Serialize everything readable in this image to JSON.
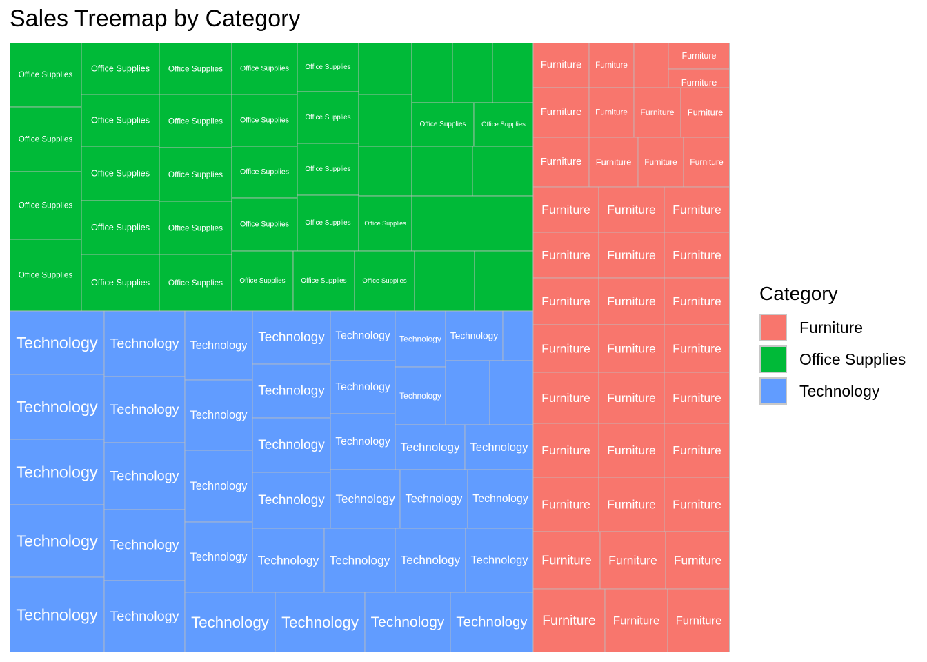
{
  "chart_data": {
    "type": "treemap",
    "title": "Sales Treemap by Category",
    "legend": {
      "title": "Category",
      "position": "right",
      "entries": [
        {
          "label": "Furniture",
          "color": "#f8766d"
        },
        {
          "label": "Office Supplies",
          "color": "#00ba38"
        },
        {
          "label": "Technology",
          "color": "#619cff"
        }
      ]
    },
    "categories": [
      {
        "name": "Office Supplies",
        "color": "#00ba38",
        "columns": [
          {
            "w": 104,
            "tiles": [
              {
                "h": 93,
                "label": "Office Supplies"
              },
              {
                "h": 94,
                "label": "Office Supplies"
              },
              {
                "h": 98,
                "label": "Office Supplies"
              },
              {
                "h": 104,
                "label": "Office Supplies"
              }
            ]
          },
          {
            "w": 113,
            "tiles": [
              {
                "h": 75,
                "label": "Office Supplies"
              },
              {
                "h": 75,
                "label": "Office Supplies"
              },
              {
                "h": 79,
                "label": "Office Supplies"
              },
              {
                "h": 78,
                "label": "Office Supplies"
              },
              {
                "h": 82,
                "label": "Office Supplies"
              }
            ]
          },
          {
            "w": 105,
            "tiles": [
              {
                "h": 75,
                "label": "Office Supplies"
              },
              {
                "h": 77,
                "label": "Office Supplies"
              },
              {
                "h": 78,
                "label": "Office Supplies"
              },
              {
                "h": 77,
                "label": "Office Supplies"
              },
              {
                "h": 82,
                "label": "Office Supplies"
              }
            ]
          },
          {
            "w": 96,
            "tiles": [
              {
                "h": 75,
                "label": "Office Supplies"
              },
              {
                "h": 75,
                "label": "Office Supplies"
              },
              {
                "h": 75,
                "label": "Office Supplies"
              },
              {
                "h": 77,
                "label": "Office Supplies"
              }
            ]
          },
          {
            "w": 89,
            "tiles": [
              {
                "h": 71,
                "label": "Office Supplies"
              },
              {
                "h": 75,
                "label": "Office Supplies"
              },
              {
                "h": 75,
                "label": "Office Supplies"
              },
              {
                "h": 81,
                "label": "Office Supplies"
              }
            ]
          },
          {
            "w": 77,
            "tiles": [
              {
                "h": 75,
                "label": ""
              },
              {
                "h": 75,
                "label": ""
              },
              {
                "h": 72,
                "label": ""
              },
              {
                "h": 80,
                "label": "Office Supplies"
              }
            ]
          },
          {
            "w": 59,
            "tiles": [
              {
                "h": 87,
                "label": ""
              }
            ]
          },
          {
            "w": 58,
            "tiles": [
              {
                "h": 87,
                "label": ""
              }
            ]
          },
          {
            "w": 58,
            "tiles": [
              {
                "h": 87,
                "label": ""
              }
            ]
          },
          {
            "w": 90,
            "tiles": [
              {
                "h": 63,
                "label": "Office Supplies"
              }
            ]
          },
          {
            "w": 86,
            "tiles": [
              {
                "h": 63,
                "label": "Office Supplies"
              }
            ]
          },
          {
            "w": 85,
            "tiles": [
              {
                "h": 71,
                "label": ""
              }
            ]
          },
          {
            "w": 85,
            "tiles": [
              {
                "h": 72,
                "label": ""
              }
            ]
          },
          {
            "w": 83,
            "tiles": [
              {
                "h": 80,
                "label": ""
              }
            ]
          },
          {
            "w": 89,
            "tiles": [
              {
                "h": 88,
                "label": "Office Supplies"
              }
            ]
          },
          {
            "w": 89,
            "tiles": [
              {
                "h": 88,
                "label": "Office Supplies"
              }
            ]
          },
          {
            "w": 87,
            "tiles": [
              {
                "h": 88,
                "label": "Office Supplies"
              }
            ]
          },
          {
            "w": 87,
            "tiles": [
              {
                "h": 88,
                "label": ""
              }
            ]
          },
          {
            "w": 85,
            "tiles": [
              {
                "h": 88,
                "label": ""
              }
            ]
          }
        ]
      },
      {
        "name": "Technology",
        "color": "#619cff",
        "columns": [
          {
            "w": 137,
            "tiles": [
              {
                "h": 92,
                "label": "Technology"
              },
              {
                "h": 94,
                "label": "Technology"
              },
              {
                "h": 95,
                "label": "Technology"
              },
              {
                "h": 105,
                "label": "Technology"
              },
              {
                "h": 108,
                "label": "Technology"
              }
            ]
          },
          {
            "w": 117,
            "tiles": [
              {
                "h": 95,
                "label": "Technology"
              },
              {
                "h": 96,
                "label": "Technology"
              },
              {
                "h": 97,
                "label": "Technology"
              },
              {
                "h": 103,
                "label": "Technology"
              },
              {
                "h": 103,
                "label": "Technology"
              }
            ]
          },
          {
            "w": 98,
            "tiles": [
              {
                "h": 100,
                "label": "Technology"
              },
              {
                "h": 102,
                "label": "Technology"
              },
              {
                "h": 104,
                "label": "Technology"
              },
              {
                "h": 102,
                "label": "Technology"
              }
            ]
          },
          {
            "w": 113,
            "tiles": [
              {
                "h": 77,
                "label": "Technology"
              },
              {
                "h": 78,
                "label": "Technology"
              },
              {
                "h": 79,
                "label": "Technology"
              },
              {
                "h": 80,
                "label": "Technology"
              }
            ]
          },
          {
            "w": 94,
            "tiles": [
              {
                "h": 72,
                "label": "Technology"
              },
              {
                "h": 77,
                "label": "Technology"
              },
              {
                "h": 81,
                "label": "Technology"
              }
            ]
          },
          {
            "w": 73,
            "tiles": [
              {
                "h": 81,
                "label": "Technology"
              },
              {
                "h": 83,
                "label": "Technology"
              }
            ]
          },
          {
            "w": 82,
            "tiles": [
              {
                "h": 72,
                "label": "Technology"
              }
            ]
          },
          {
            "w": 44,
            "tiles": [
              {
                "h": 72,
                "label": ""
              }
            ]
          },
          {
            "w": 64,
            "tiles": [
              {
                "h": 93,
                "label": ""
              }
            ]
          },
          {
            "w": 63,
            "tiles": [
              {
                "h": 93,
                "label": ""
              }
            ]
          },
          {
            "w": 101,
            "tiles": [
              {
                "h": 65,
                "label": "Technology"
              }
            ]
          },
          {
            "w": 99,
            "tiles": [
              {
                "h": 65,
                "label": "Technology"
              }
            ]
          },
          {
            "w": 101,
            "tiles": [
              {
                "h": 85,
                "label": "Technology"
              }
            ]
          },
          {
            "w": 98,
            "tiles": [
              {
                "h": 85,
                "label": "Technology"
              }
            ]
          },
          {
            "w": 95,
            "tiles": [
              {
                "h": 85,
                "label": "Technology"
              }
            ]
          },
          {
            "w": 104,
            "tiles": [
              {
                "h": 93,
                "label": "Technology"
              }
            ]
          },
          {
            "w": 103,
            "tiles": [
              {
                "h": 93,
                "label": "Technology"
              }
            ]
          },
          {
            "w": 102,
            "tiles": [
              {
                "h": 93,
                "label": "Technology"
              }
            ]
          },
          {
            "w": 99,
            "tiles": [
              {
                "h": 93,
                "label": "Technology"
              }
            ]
          },
          {
            "w": 131,
            "tiles": [
              {
                "h": 86,
                "label": "Technology"
              }
            ]
          },
          {
            "w": 130,
            "tiles": [
              {
                "h": 86,
                "label": "Technology"
              }
            ]
          },
          {
            "w": 124,
            "tiles": [
              {
                "h": 86,
                "label": "Technology"
              }
            ]
          },
          {
            "w": 121,
            "tiles": [
              {
                "h": 86,
                "label": "Technology"
              }
            ]
          }
        ]
      },
      {
        "name": "Furniture",
        "color": "#f8766d",
        "tiles": [
          {
            "label": "Furniture"
          },
          {
            "label": "Furniture"
          },
          {
            "label": ""
          },
          {
            "label": "Furniture"
          },
          {
            "label": "Furniture"
          },
          {
            "label": "Furniture"
          },
          {
            "label": "Furniture"
          },
          {
            "label": "Furniture"
          },
          {
            "label": "Furniture"
          },
          {
            "label": "Furniture"
          },
          {
            "label": "Furniture"
          },
          {
            "label": "Furniture"
          },
          {
            "label": "Furniture"
          },
          {
            "label": "Furniture"
          },
          {
            "label": "Furniture"
          },
          {
            "label": "Furniture"
          },
          {
            "label": "Furniture"
          },
          {
            "label": "Furniture"
          },
          {
            "label": "Furniture"
          },
          {
            "label": "Furniture"
          },
          {
            "label": "Furniture"
          },
          {
            "label": "Furniture"
          },
          {
            "label": "Furniture"
          },
          {
            "label": "Furniture"
          },
          {
            "label": "Furniture"
          },
          {
            "label": "Furniture"
          },
          {
            "label": "Furniture"
          },
          {
            "label": "Furniture"
          },
          {
            "label": "Furniture"
          },
          {
            "label": "Furniture"
          },
          {
            "label": "Furniture"
          },
          {
            "label": "Furniture"
          },
          {
            "label": "Furniture"
          },
          {
            "label": "Furniture"
          },
          {
            "label": "Furniture"
          },
          {
            "label": "Furniture"
          },
          {
            "label": "Furniture"
          },
          {
            "label": "Furniture"
          },
          {
            "label": "Furniture"
          },
          {
            "label": "Furniture"
          }
        ]
      }
    ]
  }
}
